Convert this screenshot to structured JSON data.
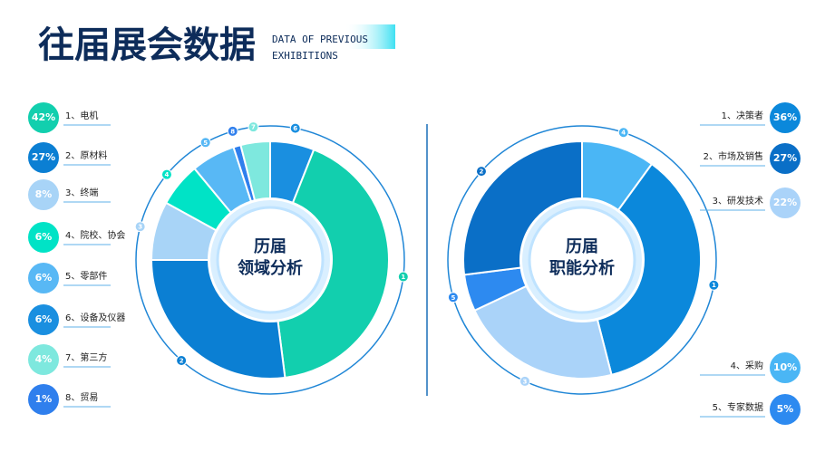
{
  "title": "往届展会数据",
  "subtitle": [
    "DATA OF PREVIOUS",
    "EXHIBITIONS"
  ],
  "chart_data": [
    {
      "type": "donut",
      "center_label": [
        "历届",
        "领域分析"
      ],
      "categories": [
        "1、电机",
        "2、原材料",
        "3、终端",
        "4、院校、协会",
        "5、零部件",
        "6、设备及仪器",
        "7、第三方",
        "8、贸易"
      ],
      "values": [
        42,
        27,
        8,
        6,
        6,
        6,
        4,
        1
      ],
      "value_labels": [
        "42%",
        "27%",
        "8%",
        "6%",
        "6%",
        "6%",
        "4%",
        "1%"
      ],
      "colors": [
        "#12cfae",
        "#0b7fd3",
        "#a8d4f7",
        "#00e3c6",
        "#58b8f5",
        "#1a8fe0",
        "#7ee8de",
        "#2f7fed"
      ],
      "ring_labels": [
        6,
        1,
        2,
        3,
        4,
        5,
        8,
        7
      ]
    },
    {
      "type": "donut",
      "center_label": [
        "历届",
        "职能分析"
      ],
      "categories": [
        "1、决策者",
        "2、市场及销售",
        "3、研发技术",
        "4、采购",
        "5、专家数据"
      ],
      "values": [
        36,
        27,
        22,
        10,
        5
      ],
      "value_labels": [
        "36%",
        "27%",
        "22%",
        "10%",
        "5%"
      ],
      "colors": [
        "#0b88db",
        "#0a6fc7",
        "#aad3f9",
        "#4ab6f5",
        "#2d8af0"
      ],
      "ring_labels": [
        4,
        1,
        3,
        5,
        2
      ]
    }
  ]
}
